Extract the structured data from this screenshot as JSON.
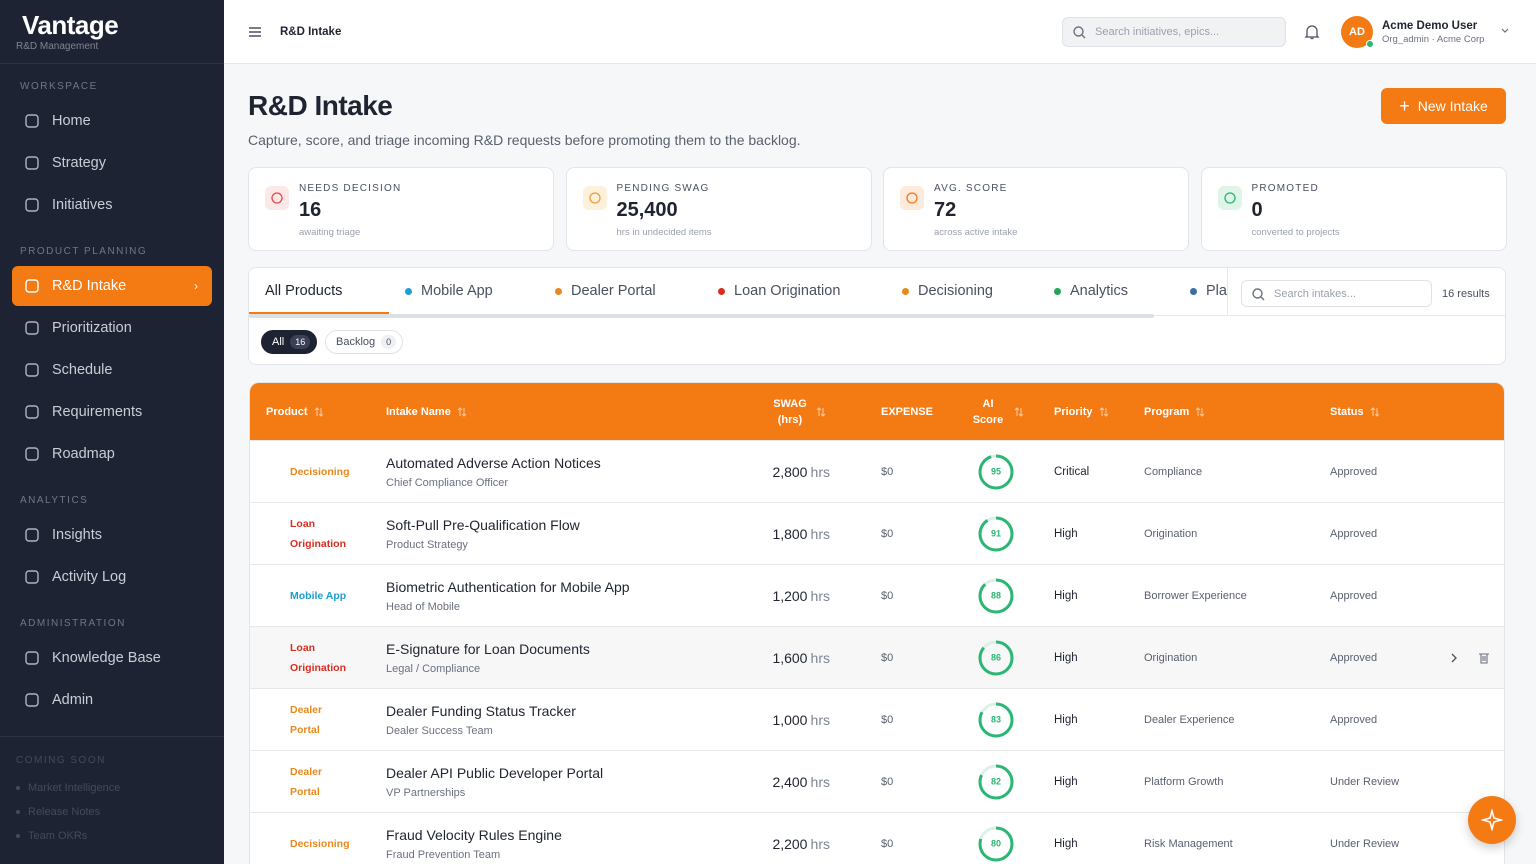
{
  "sidebar": {
    "brand": "Vantage",
    "brand_sub": "R&D Management",
    "sections": [
      {
        "label": "WORKSPACE",
        "items": [
          "Home",
          "Strategy",
          "Initiatives"
        ]
      },
      {
        "label": "PRODUCT PLANNING",
        "items": [
          "R&D Intake",
          "Prioritization",
          "Schedule",
          "Requirements",
          "Roadmap"
        ]
      },
      {
        "label": "ANALYTICS",
        "items": [
          "Insights",
          "Activity Log"
        ]
      },
      {
        "label": "ADMINISTRATION",
        "items": [
          "Knowledge Base",
          "Admin"
        ]
      }
    ],
    "coming_soon": {
      "label": "COMING SOON",
      "items": [
        "Market Intelligence",
        "Release Notes",
        "Team OKRs"
      ]
    }
  },
  "topbar": {
    "title": "R&D Intake",
    "search_placeholder": "Search initiatives, epics...",
    "user": {
      "initials": "AD",
      "name": "Acme Demo User",
      "role": "Org_admin · Acme Corp"
    }
  },
  "header": {
    "title": "R&D Intake",
    "subtitle": "Capture, score, and triage incoming R&D requests before promoting them to the backlog.",
    "button": "New Intake"
  },
  "stats": [
    {
      "label": "NEEDS DECISION",
      "value": "16",
      "note": "awaiting triage",
      "color": "#e5484d",
      "bg": "#fde8e8"
    },
    {
      "label": "PENDING SWAG",
      "value": "25,400",
      "note": "hrs in undecided items",
      "color": "#e6a23c",
      "bg": "#fdf1dc"
    },
    {
      "label": "AVG. SCORE",
      "value": "72",
      "note": "across active intake",
      "color": "#f07a1a",
      "bg": "#fdeadb"
    },
    {
      "label": "PROMOTED",
      "value": "0",
      "note": "converted to projects",
      "color": "#2bb673",
      "bg": "#e0f4e8"
    }
  ],
  "tabs": {
    "products": [
      {
        "name": "All Products"
      },
      {
        "name": "Mobile App",
        "color": "#1ba1d8"
      },
      {
        "name": "Dealer Portal",
        "color": "#e8891c"
      },
      {
        "name": "Loan Origination",
        "color": "#d92d20"
      },
      {
        "name": "Decisioning",
        "color": "#e8891c"
      },
      {
        "name": "Analytics",
        "color": "#22a55b"
      },
      {
        "name": "Platform",
        "color": "#3b6ea5"
      }
    ],
    "search_placeholder": "Search intakes...",
    "results": "16 results",
    "filters": [
      {
        "label": "All",
        "count": 16
      },
      {
        "label": "Backlog",
        "count": 0
      }
    ]
  },
  "table": {
    "columns": [
      "Product",
      "Intake Name",
      "SWAG (hrs)",
      "EXPENSE",
      "AI Score",
      "Priority",
      "Program",
      "Status"
    ],
    "unit": "hrs",
    "rows": [
      {
        "product": "Decisioning",
        "product_color": "#e8891c",
        "name": "Automated Adverse Action Notices",
        "owner": "Chief Compliance Officer",
        "swag": "2,800",
        "expense": "$0",
        "score": 95,
        "priority": "Critical",
        "program": "Compliance",
        "status": "Approved"
      },
      {
        "product": "Loan Origination",
        "product_color": "#d92d20",
        "name": "Soft-Pull Pre-Qualification Flow",
        "owner": "Product Strategy",
        "swag": "1,800",
        "expense": "$0",
        "score": 91,
        "priority": "High",
        "program": "Origination",
        "status": "Approved"
      },
      {
        "product": "Mobile App",
        "product_color": "#1a9fcf",
        "name": "Biometric Authentication for Mobile App",
        "owner": "Head of Mobile",
        "swag": "1,200",
        "expense": "$0",
        "score": 88,
        "priority": "High",
        "program": "Borrower Experience",
        "status": "Approved"
      },
      {
        "product": "Loan Origination",
        "product_color": "#d92d20",
        "name": "E-Signature for Loan Documents",
        "owner": "Legal / Compliance",
        "swag": "1,600",
        "expense": "$0",
        "score": 86,
        "priority": "High",
        "program": "Origination",
        "status": "Approved"
      },
      {
        "product": "Dealer Portal",
        "product_color": "#e8891c",
        "name": "Dealer Funding Status Tracker",
        "owner": "Dealer Success Team",
        "swag": "1,000",
        "expense": "$0",
        "score": 83,
        "priority": "High",
        "program": "Dealer Experience",
        "status": "Approved"
      },
      {
        "product": "Dealer Portal",
        "product_color": "#e8891c",
        "name": "Dealer API Public Developer Portal",
        "owner": "VP Partnerships",
        "swag": "2,400",
        "expense": "$0",
        "score": 82,
        "priority": "High",
        "program": "Platform Growth",
        "status": "Under Review"
      },
      {
        "product": "Decisioning",
        "product_color": "#e8891c",
        "name": "Fraud Velocity Rules Engine",
        "owner": "Fraud Prevention Team",
        "swag": "2,200",
        "expense": "$0",
        "score": 80,
        "priority": "High",
        "program": "Risk Management",
        "status": "Under Review"
      }
    ]
  }
}
